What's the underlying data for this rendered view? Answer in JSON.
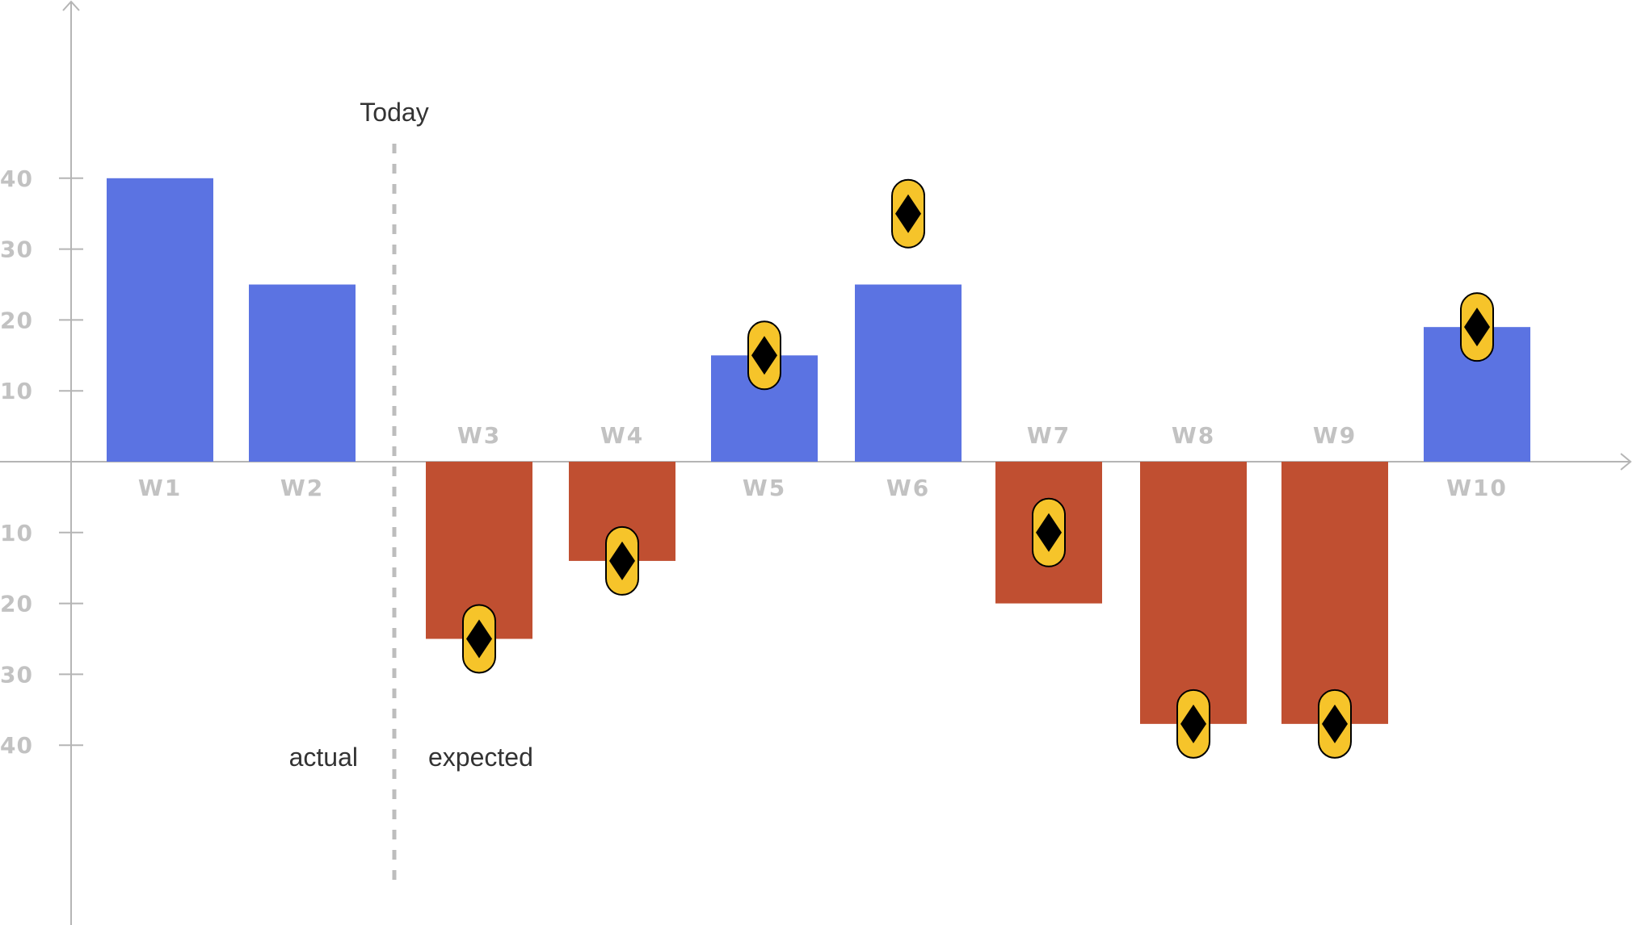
{
  "chart_data": {
    "type": "bar",
    "categories": [
      "W1",
      "W2",
      "W3",
      "W4",
      "W5",
      "W6",
      "W7",
      "W8",
      "W9",
      "W10"
    ],
    "values": [
      40,
      25,
      -25,
      -14,
      15,
      25,
      -20,
      -37,
      -37,
      19
    ],
    "marker_values": [
      null,
      null,
      -25,
      -14,
      15,
      35,
      -10,
      -37,
      -37,
      19
    ],
    "y_ticks_above": [
      10,
      20,
      30,
      40
    ],
    "y_ticks_below": [
      10,
      20,
      30,
      40
    ],
    "ylim": [
      -55,
      65
    ],
    "grid": false,
    "legend": "none"
  },
  "annotations": {
    "today": "Today",
    "actual": "actual",
    "expected": "expected"
  },
  "colors": {
    "positive": "#5b73e2",
    "negative": "#c04f31",
    "marker_fill": "#f6c42a",
    "marker_diamond": "#000000",
    "axis": "#b5b5b5",
    "today_line": "#bdbdbd"
  }
}
